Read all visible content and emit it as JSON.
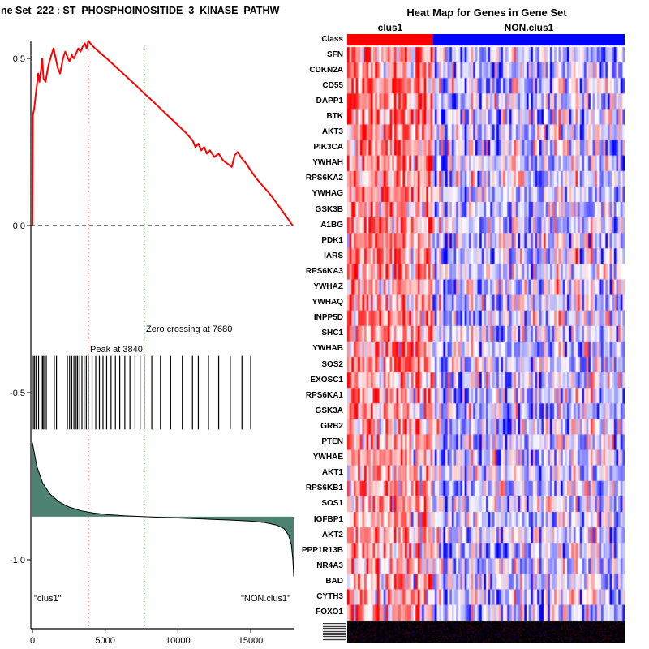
{
  "left_panel": {
    "title": "ne Set  222 : ST_PHOSPHOINOSITIDE_3_KINASE_PATHW",
    "annotation_zero_crossing": "Zero crossing at 7680",
    "annotation_peak": "Peak at 3840",
    "group_label_left": "\"clus1\"",
    "group_label_right": "\"NON.clus1\""
  },
  "right_panel": {
    "title": "Heat Map for Genes in Gene Set",
    "class_row_label": "Class",
    "class_groups": [
      {
        "label": "clus1",
        "color": "#FF0000"
      },
      {
        "label": "NON.clus1",
        "color": "#0000FF"
      }
    ],
    "genes": [
      "SFN",
      "CDKN2A",
      "CD55",
      "DAPP1",
      "BTK",
      "AKT3",
      "PIK3CA",
      "YWHAH",
      "RPS6KA2",
      "YWHAG",
      "GSK3B",
      "A1BG",
      "PDK1",
      "IARS",
      "RPS6KA3",
      "YWHAZ",
      "YWHAQ",
      "INPP5D",
      "SHC1",
      "YWHAB",
      "SOS2",
      "EXOSC1",
      "RPS6KA1",
      "GSK3A",
      "GRB2",
      "PTEN",
      "YWHAE",
      "AKT1",
      "RPS6KB1",
      "SOS1",
      "IGFBP1",
      "AKT2",
      "PPP1R13B",
      "NR4A3",
      "BAD",
      "CYTH3",
      "FOXO1"
    ]
  },
  "chart_data": [
    {
      "type": "line",
      "title": "ne Set  222 : ST_PHOSPHOINOSITIDE_3_KINASE_PATHW",
      "xlabel": "",
      "ylabel": "",
      "xlim": [
        0,
        18200
      ],
      "ylim": [
        -1.21,
        0.58
      ],
      "x_ticks": [
        0,
        5000,
        10000,
        15000
      ],
      "x_tick_labels": [
        "0",
        "5000",
        "10000",
        "15000"
      ],
      "y_ticks": [
        0.5,
        0.0,
        -0.5,
        -1.0
      ],
      "y_tick_labels": [
        "0.5",
        "0.0",
        "-0.5",
        "-1.0"
      ],
      "hline": {
        "y": 0,
        "style": "dashed"
      },
      "vlines": [
        {
          "x": 3840,
          "color": "#FF4444",
          "label": "Peak at 3840"
        },
        {
          "x": 7680,
          "color": "#00C000",
          "label": "Zero crossing at 7680"
        }
      ],
      "series": [
        {
          "name": "running_enrichment_score",
          "color": "#FF0000",
          "points": [
            [
              0,
              0
            ],
            [
              30,
              0.33
            ],
            [
              120,
              0.35
            ],
            [
              250,
              0.4
            ],
            [
              400,
              0.455
            ],
            [
              480,
              0.43
            ],
            [
              600,
              0.47
            ],
            [
              670,
              0.5
            ],
            [
              760,
              0.44
            ],
            [
              900,
              0.43
            ],
            [
              1100,
              0.48
            ],
            [
              1300,
              0.51
            ],
            [
              1450,
              0.53
            ],
            [
              1600,
              0.5
            ],
            [
              1750,
              0.47
            ],
            [
              1900,
              0.455
            ],
            [
              2100,
              0.5
            ],
            [
              2250,
              0.52
            ],
            [
              2400,
              0.505
            ],
            [
              2550,
              0.49
            ],
            [
              2700,
              0.51
            ],
            [
              2850,
              0.5
            ],
            [
              3000,
              0.515
            ],
            [
              3150,
              0.53
            ],
            [
              3300,
              0.52
            ],
            [
              3450,
              0.535
            ],
            [
              3600,
              0.545
            ],
            [
              3720,
              0.53
            ],
            [
              3840,
              0.553
            ],
            [
              3980,
              0.545
            ],
            [
              4300,
              0.53
            ],
            [
              4700,
              0.515
            ],
            [
              5100,
              0.5
            ],
            [
              5600,
              0.48
            ],
            [
              6100,
              0.46
            ],
            [
              6600,
              0.44
            ],
            [
              7100,
              0.42
            ],
            [
              7680,
              0.395
            ],
            [
              8200,
              0.375
            ],
            [
              8800,
              0.35
            ],
            [
              9400,
              0.325
            ],
            [
              10000,
              0.3
            ],
            [
              10600,
              0.275
            ],
            [
              11000,
              0.255
            ],
            [
              11200,
              0.235
            ],
            [
              11400,
              0.245
            ],
            [
              11600,
              0.225
            ],
            [
              11800,
              0.235
            ],
            [
              12000,
              0.215
            ],
            [
              12200,
              0.225
            ],
            [
              12500,
              0.205
            ],
            [
              12800,
              0.215
            ],
            [
              13100,
              0.195
            ],
            [
              13400,
              0.185
            ],
            [
              13700,
              0.175
            ],
            [
              13900,
              0.21
            ],
            [
              14100,
              0.22
            ],
            [
              14400,
              0.2
            ],
            [
              14700,
              0.185
            ],
            [
              15000,
              0.165
            ],
            [
              15400,
              0.14
            ],
            [
              15900,
              0.115
            ],
            [
              16400,
              0.09
            ],
            [
              16900,
              0.06
            ],
            [
              17400,
              0.03
            ],
            [
              17800,
              0.005
            ],
            [
              17900,
              0
            ]
          ]
        },
        {
          "name": "ranked_list_metric",
          "color": "#4D8272",
          "baseline": -0.871,
          "points": [
            [
              0,
              -0.65
            ],
            [
              300,
              -0.72
            ],
            [
              700,
              -0.77
            ],
            [
              1200,
              -0.803
            ],
            [
              1800,
              -0.826
            ],
            [
              2500,
              -0.842
            ],
            [
              3300,
              -0.853
            ],
            [
              4200,
              -0.86
            ],
            [
              5200,
              -0.865
            ],
            [
              6400,
              -0.8685
            ],
            [
              7680,
              -0.871
            ],
            [
              9000,
              -0.8735
            ],
            [
              10500,
              -0.876
            ],
            [
              12000,
              -0.8785
            ],
            [
              13500,
              -0.881
            ],
            [
              15000,
              -0.8845
            ],
            [
              16000,
              -0.889
            ],
            [
              16800,
              -0.8965
            ],
            [
              17300,
              -0.907
            ],
            [
              17600,
              -0.926
            ],
            [
              17800,
              -0.956
            ],
            [
              17900,
              -1.0
            ],
            [
              17960,
              -1.05
            ]
          ]
        }
      ],
      "hit_rug": {
        "y_range": [
          -0.39,
          -0.61
        ],
        "positions": [
          60,
          150,
          260,
          420,
          600,
          700,
          780,
          950,
          1500,
          1650,
          2400,
          2550,
          2700,
          2850,
          3000,
          3100,
          3250,
          3400,
          3550,
          3700,
          3840,
          4100,
          4350,
          4600,
          4850,
          5100,
          5400,
          5700,
          6000,
          6350,
          6700,
          7050,
          7400,
          7680,
          8200,
          8800,
          9500,
          10300,
          11000,
          11400,
          12100,
          12800,
          13600,
          14400,
          15000
        ]
      },
      "annotations": [
        {
          "text": "Zero crossing at 7680",
          "x": 7680,
          "y": -0.31
        },
        {
          "text": "Peak at 3840",
          "x": 3840,
          "y": -0.37
        },
        {
          "text": "\"clus1\"",
          "anchor": "left-bottom"
        },
        {
          "text": "\"NON.clus1\"",
          "anchor": "right-bottom"
        }
      ]
    },
    {
      "type": "heatmap",
      "title": "Heat Map for Genes in Gene Set",
      "rows": [
        "SFN",
        "CDKN2A",
        "CD55",
        "DAPP1",
        "BTK",
        "AKT3",
        "PIK3CA",
        "YWHAH",
        "RPS6KA2",
        "YWHAG",
        "GSK3B",
        "A1BG",
        "PDK1",
        "IARS",
        "RPS6KA3",
        "YWHAZ",
        "YWHAQ",
        "INPP5D",
        "SHC1",
        "YWHAB",
        "SOS2",
        "EXOSC1",
        "RPS6KA1",
        "GSK3A",
        "GRB2",
        "PTEN",
        "YWHAE",
        "AKT1",
        "RPS6KB1",
        "SOS1",
        "IGFBP1",
        "AKT2",
        "PPP1R13B",
        "NR4A3",
        "BAD",
        "CYTH3",
        "FOXO1"
      ],
      "class_row": "Class",
      "column_groups": [
        {
          "name": "clus1",
          "color": "#FF0000",
          "columns": 40
        },
        {
          "name": "NON.clus1",
          "color": "#0000FF",
          "columns": 90
        }
      ],
      "palette": {
        "low": "#0000FF",
        "mid": "#FFFFFF",
        "high": "#FF0000"
      },
      "procedural": {
        "seed": 11,
        "clus1_bias_top": 0.5,
        "clus1_bias_bottom": 0.28,
        "non_bias": -0.18,
        "noise": 0.95,
        "column_streak": 0.3
      }
    }
  ]
}
